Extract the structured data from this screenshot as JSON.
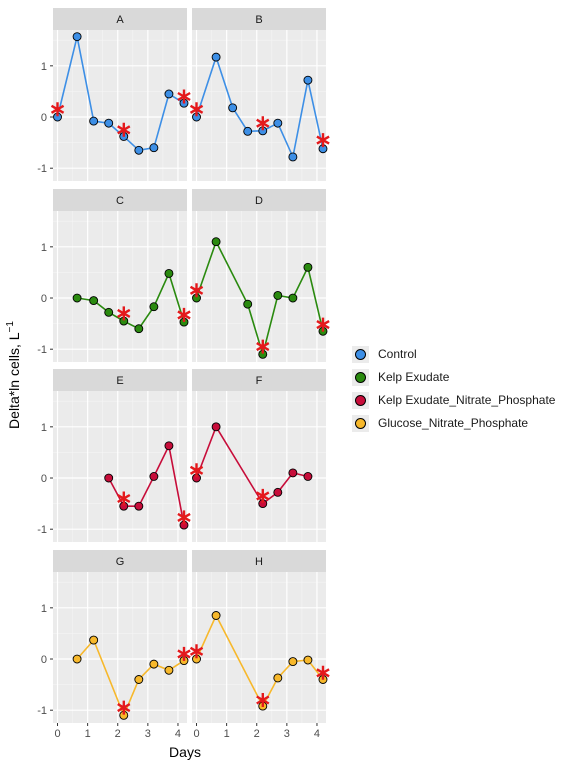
{
  "chart_data": {
    "type": "line",
    "xlabel": "Days",
    "ylabel": "Delta*ln cells, L",
    "ylabel_sup": "−1",
    "xlim": [
      -0.15,
      4.3
    ],
    "ylim": [
      -1.25,
      1.7
    ],
    "x_ticks": [
      0,
      1,
      2,
      3,
      4
    ],
    "x_tick_labels": [
      "0",
      "1",
      "2",
      "3",
      "4"
    ],
    "y_ticks": [
      -1,
      0,
      1
    ],
    "y_tick_labels": [
      "-1",
      "0",
      "1"
    ],
    "grid": true,
    "legend_position": "right",
    "legend": [
      {
        "name": "Control",
        "color": "#3d8fe6"
      },
      {
        "name": "Kelp Exudate",
        "color": "#2a8a0f"
      },
      {
        "name": "Kelp Exudate_Nitrate_Phosphate",
        "color": "#c70d3a"
      },
      {
        "name": "Glucose_Nitrate_Phosphate",
        "color": "#f7b82b"
      }
    ],
    "panels": [
      {
        "label": "A",
        "series": 0,
        "points": [
          [
            0,
            0.0
          ],
          [
            0.65,
            1.57
          ],
          [
            1.2,
            -0.08
          ],
          [
            1.7,
            -0.12
          ],
          [
            2.2,
            -0.38
          ],
          [
            2.7,
            -0.65
          ],
          [
            3.2,
            -0.6
          ],
          [
            3.7,
            0.45
          ],
          [
            4.2,
            0.27
          ]
        ],
        "stars": [
          [
            0,
            0.15
          ],
          [
            2.2,
            -0.25
          ],
          [
            4.2,
            0.4
          ]
        ]
      },
      {
        "label": "B",
        "series": 0,
        "points": [
          [
            0,
            0.0
          ],
          [
            0.65,
            1.17
          ],
          [
            1.2,
            0.18
          ],
          [
            1.7,
            -0.28
          ],
          [
            2.2,
            -0.27
          ],
          [
            2.7,
            -0.12
          ],
          [
            3.2,
            -0.78
          ],
          [
            3.7,
            0.72
          ],
          [
            4.2,
            -0.62
          ]
        ],
        "stars": [
          [
            0,
            0.15
          ],
          [
            2.2,
            -0.12
          ],
          [
            4.2,
            -0.45
          ]
        ]
      },
      {
        "label": "C",
        "series": 1,
        "points": [
          [
            0.65,
            0.0
          ],
          [
            1.2,
            -0.05
          ],
          [
            1.7,
            -0.28
          ],
          [
            2.2,
            -0.45
          ],
          [
            2.7,
            -0.6
          ],
          [
            3.2,
            -0.17
          ],
          [
            3.7,
            0.48
          ],
          [
            4.2,
            -0.47
          ]
        ],
        "stars": [
          [
            2.2,
            -0.3
          ],
          [
            4.2,
            -0.33
          ]
        ]
      },
      {
        "label": "D",
        "series": 1,
        "points": [
          [
            0,
            0.0
          ],
          [
            0.65,
            1.1
          ],
          [
            1.7,
            -0.12
          ],
          [
            2.2,
            -1.1
          ],
          [
            2.7,
            0.05
          ],
          [
            3.2,
            0.0
          ],
          [
            3.7,
            0.6
          ],
          [
            4.2,
            -0.65
          ]
        ],
        "stars": [
          [
            0,
            0.15
          ],
          [
            2.2,
            -0.95
          ],
          [
            4.2,
            -0.52
          ]
        ]
      },
      {
        "label": "E",
        "series": 2,
        "points": [
          [
            1.7,
            0.0
          ],
          [
            2.2,
            -0.55
          ],
          [
            2.7,
            -0.55
          ],
          [
            3.2,
            0.03
          ],
          [
            3.7,
            0.63
          ],
          [
            4.2,
            -0.92
          ]
        ],
        "stars": [
          [
            2.2,
            -0.4
          ],
          [
            4.2,
            -0.77
          ]
        ]
      },
      {
        "label": "F",
        "series": 2,
        "points": [
          [
            0,
            0.0
          ],
          [
            0.65,
            1.0
          ],
          [
            2.2,
            -0.5
          ],
          [
            2.7,
            -0.28
          ],
          [
            3.2,
            0.1
          ],
          [
            3.7,
            0.03
          ]
        ],
        "stars": [
          [
            0,
            0.15
          ],
          [
            2.2,
            -0.35
          ]
        ]
      },
      {
        "label": "G",
        "series": 3,
        "points": [
          [
            0.65,
            0.0
          ],
          [
            1.2,
            0.37
          ],
          [
            2.2,
            -1.1
          ],
          [
            2.7,
            -0.4
          ],
          [
            3.2,
            -0.1
          ],
          [
            3.7,
            -0.22
          ],
          [
            4.2,
            -0.03
          ]
        ],
        "stars": [
          [
            2.2,
            -0.95
          ],
          [
            4.2,
            0.1
          ]
        ]
      },
      {
        "label": "H",
        "series": 3,
        "points": [
          [
            0,
            0.0
          ],
          [
            0.65,
            0.85
          ],
          [
            2.2,
            -0.92
          ],
          [
            2.7,
            -0.37
          ],
          [
            3.2,
            -0.05
          ],
          [
            3.7,
            -0.02
          ],
          [
            4.2,
            -0.4
          ]
        ],
        "stars": [
          [
            0,
            0.15
          ],
          [
            2.2,
            -0.8
          ],
          [
            4.2,
            -0.27
          ]
        ]
      }
    ]
  }
}
